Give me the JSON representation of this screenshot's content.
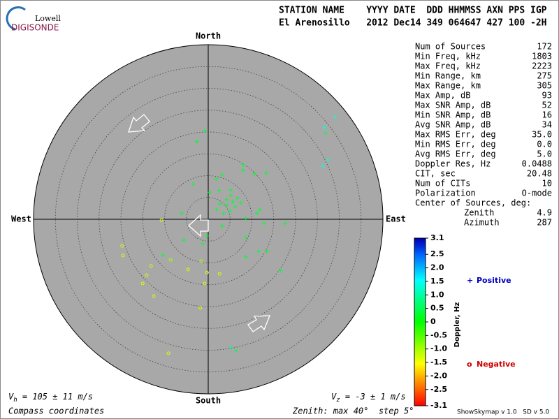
{
  "logo": {
    "top": "Lowell",
    "bottom": "DIGISONDE"
  },
  "header": {
    "line1": "STATION NAME    YYYY DATE  DDD HHMMSS AXN PPS IGP",
    "line2": "El Arenosillo   2012 Dec14 349 064647 427 100 -2H"
  },
  "stats": [
    [
      "Num of Sources",
      "172"
    ],
    [
      "Min Freq, kHz",
      "1803"
    ],
    [
      "Max Freq, kHz",
      "2223"
    ],
    [
      "Min Range, km",
      "275"
    ],
    [
      "Max Range, km",
      "305"
    ],
    [
      "Max Amp, dB",
      "93"
    ],
    [
      "Max SNR Amp, dB",
      "52"
    ],
    [
      "Min SNR Amp, dB",
      "16"
    ],
    [
      "Avg SNR Amp, dB",
      "34"
    ],
    [
      "Max RMS Err, deg",
      "35.0"
    ],
    [
      "Min RMS Err, deg",
      "0.0"
    ],
    [
      "Avg RMS Err, deg",
      "5.0"
    ],
    [
      "Doppler Res, Hz",
      "0.0488"
    ],
    [
      "CIT, sec",
      "20.48"
    ],
    [
      "Num of CITs",
      "10"
    ],
    [
      "Polarization",
      "O-mode"
    ],
    [
      "Center of Sources, deg:"
    ],
    [
      "Zenith",
      "4.9"
    ],
    [
      "Azimuth",
      "287"
    ]
  ],
  "footer": {
    "vh": {
      "symbol": "V",
      "sub": "h",
      "text": " = 105 ± 11 m/s"
    },
    "vz": {
      "symbol": "V",
      "sub": "z",
      "text": " = -3 ± 1 m/s"
    },
    "coords": "Compass coordinates",
    "zenith": "Zenith: max 40°  step 5°",
    "version": "ShowSkymap v 1.0   SD v 5.0"
  },
  "chart_data": {
    "type": "skymap",
    "directions": {
      "north": "North",
      "south": "South",
      "east": "East",
      "west": "West"
    },
    "rlim": [
      0,
      40
    ],
    "rticks": [
      5,
      10,
      15,
      20,
      25,
      30,
      35
    ],
    "colorbar": {
      "label": "Doppler, Hz",
      "lim": [
        -3.1,
        3.1
      ],
      "ticks": [
        3.1,
        2.5,
        {
          "value": 2,
          "label": "2.0"
        },
        1.5,
        {
          "value": 1,
          "label": "1.0"
        },
        0.5,
        0,
        -0.5,
        {
          "value": -1,
          "label": "-1.0"
        },
        -1.5,
        {
          "value": -2,
          "label": "-2.0"
        },
        -2.5,
        -3.1
      ]
    },
    "series": [
      {
        "name": "Positive",
        "marker": "+",
        "legend_color": "#0000c0",
        "x": [
          -0.8,
          -2.6,
          29.1,
          26.6,
          26.9,
          27.5,
          26.2,
          8.0,
          8.0,
          3.2,
          10.6,
          13.3,
          1.8,
          -3.5,
          5.1,
          2.6,
          0.3,
          5.1,
          6.7,
          4.2,
          5.6,
          7.5,
          2.7,
          4.3,
          6.2,
          1.9,
          5.0,
          3.5,
          11.8,
          11.2,
          -6.1,
          8.6,
          12.8,
          17.6,
          3.2,
          -0.3,
          8.6,
          -5.6,
          -1.3,
          11.5,
          13.4,
          8.6,
          16.6,
          -10.4,
          5.1,
          6.4
        ],
        "y": [
          20.3,
          17.8,
          23.4,
          21.0,
          19.7,
          13.6,
          12.2,
          12.5,
          11.2,
          10.2,
          10.4,
          10.6,
          9.3,
          8.0,
          6.7,
          6.6,
          6.2,
          5.4,
          4.8,
          4.5,
          4.0,
          3.8,
          3.5,
          3.2,
          2.9,
          2.2,
          1.9,
          1.4,
          2.2,
          1.4,
          1.4,
          0.2,
          -1.0,
          -1.0,
          -1.6,
          -3.8,
          -4.2,
          -4.8,
          -5.6,
          -7.4,
          -7.4,
          -8.6,
          -11.8,
          -8.2,
          -29.4,
          -30.1
        ],
        "doppler": [
          0.3,
          0.3,
          1.3,
          1.3,
          0.5,
          1.3,
          1.3,
          0.3,
          0.3,
          0.3,
          0.3,
          0.3,
          0.3,
          0.3,
          0.3,
          0.3,
          0.3,
          0.3,
          0.3,
          0.3,
          0.3,
          0.3,
          0.3,
          0.3,
          0.3,
          0.3,
          0.3,
          0.3,
          0.3,
          0.3,
          0.3,
          0.3,
          0.3,
          0.3,
          0.3,
          0.3,
          0.3,
          0.3,
          0.3,
          0.3,
          0.3,
          0.3,
          0.3,
          0.3,
          0.8,
          0.3
        ]
      },
      {
        "name": "Negative",
        "marker": "o",
        "legend_color": "#d00000",
        "x": [
          -10.7,
          -19.7,
          -19.5,
          -13.1,
          -8.6,
          -4.6,
          -0.3,
          -14.1,
          -15.0,
          -12.5,
          -0.8,
          -1.8,
          2.6,
          -9.1,
          -1.6
        ],
        "y": [
          -0.2,
          -6.1,
          -8.3,
          -10.7,
          -9.3,
          -11.5,
          -12.2,
          -12.8,
          -14.7,
          -17.6,
          -14.7,
          -20.3,
          -12.5,
          -30.7,
          -9.6
        ],
        "doppler": [
          -1.3,
          -1.3,
          -1.3,
          -1.3,
          -1.0,
          -1.3,
          -1.3,
          -1.3,
          -1.3,
          -1.3,
          -1.3,
          -1.3,
          -1.3,
          -1.3,
          -1.0
        ]
      }
    ]
  }
}
